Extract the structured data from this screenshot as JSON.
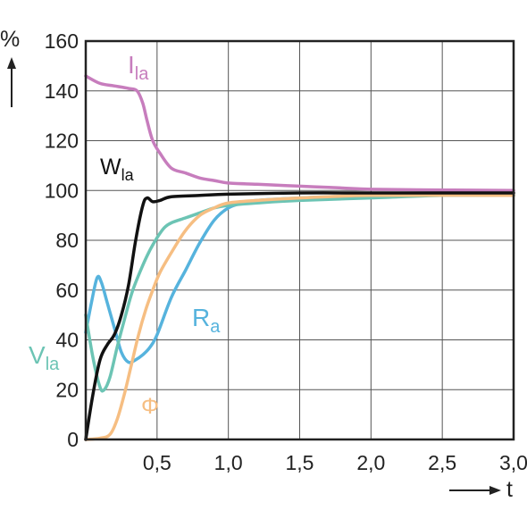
{
  "chart_data": {
    "type": "line",
    "title": "",
    "xlabel": "t",
    "ylabel": "%",
    "xlim": [
      0,
      3.0
    ],
    "ylim": [
      0,
      160
    ],
    "grid": true,
    "x_ticks": [
      0.5,
      1.0,
      1.5,
      2.0,
      2.5,
      3.0
    ],
    "x_tick_labels": [
      "0,5",
      "1,0",
      "1,5",
      "2,0",
      "2,5",
      "3,0"
    ],
    "y_ticks": [
      0,
      20,
      40,
      60,
      80,
      100,
      120,
      140,
      160
    ],
    "y_tick_labels": [
      "0",
      "20",
      "40",
      "60",
      "80",
      "100",
      "120",
      "140",
      "160"
    ],
    "series": [
      {
        "name": "Ila",
        "base": "I",
        "sub": "la",
        "color": "#c77dbd",
        "points": [
          [
            0,
            146
          ],
          [
            0.1,
            143
          ],
          [
            0.2,
            142
          ],
          [
            0.3,
            141
          ],
          [
            0.36,
            140
          ],
          [
            0.4,
            135
          ],
          [
            0.43,
            128
          ],
          [
            0.47,
            120
          ],
          [
            0.52,
            115
          ],
          [
            0.6,
            109
          ],
          [
            0.7,
            107
          ],
          [
            0.8,
            105
          ],
          [
            0.9,
            104
          ],
          [
            1.0,
            103
          ],
          [
            1.2,
            102.5
          ],
          [
            1.4,
            102
          ],
          [
            1.6,
            101.5
          ],
          [
            1.8,
            101
          ],
          [
            2.0,
            100.5
          ],
          [
            2.5,
            100.2
          ],
          [
            3.0,
            100
          ]
        ]
      },
      {
        "name": "Wla",
        "base": "W",
        "sub": "la",
        "color": "#111111",
        "points": [
          [
            0,
            0
          ],
          [
            0.05,
            18
          ],
          [
            0.1,
            32
          ],
          [
            0.15,
            38
          ],
          [
            0.2,
            42
          ],
          [
            0.25,
            50
          ],
          [
            0.3,
            62
          ],
          [
            0.35,
            80
          ],
          [
            0.4,
            94
          ],
          [
            0.43,
            97
          ],
          [
            0.47,
            95.5
          ],
          [
            0.52,
            96
          ],
          [
            0.6,
            97.5
          ],
          [
            0.8,
            98
          ],
          [
            1.0,
            98.5
          ],
          [
            1.5,
            99
          ],
          [
            2.0,
            99
          ],
          [
            2.5,
            99
          ],
          [
            3.0,
            99
          ]
        ]
      },
      {
        "name": "Vla",
        "base": "V",
        "sub": "la",
        "color": "#6cc4b4",
        "points": [
          [
            0,
            50
          ],
          [
            0.05,
            33
          ],
          [
            0.1,
            21
          ],
          [
            0.13,
            20
          ],
          [
            0.17,
            25
          ],
          [
            0.22,
            37
          ],
          [
            0.28,
            50
          ],
          [
            0.33,
            60
          ],
          [
            0.4,
            70
          ],
          [
            0.45,
            76
          ],
          [
            0.5,
            81
          ],
          [
            0.55,
            85
          ],
          [
            0.6,
            87
          ],
          [
            0.7,
            89
          ],
          [
            0.8,
            91
          ],
          [
            0.9,
            93
          ],
          [
            1.0,
            94
          ],
          [
            1.2,
            95
          ],
          [
            1.5,
            96
          ],
          [
            2.0,
            97
          ],
          [
            2.5,
            98
          ],
          [
            3.0,
            98
          ]
        ]
      },
      {
        "name": "Ra",
        "base": "R",
        "sub": "a",
        "color": "#56b3dd",
        "points": [
          [
            0,
            43
          ],
          [
            0.04,
            55
          ],
          [
            0.08,
            65
          ],
          [
            0.11,
            63
          ],
          [
            0.15,
            55
          ],
          [
            0.2,
            45
          ],
          [
            0.25,
            35
          ],
          [
            0.3,
            31
          ],
          [
            0.35,
            32
          ],
          [
            0.4,
            34
          ],
          [
            0.45,
            37
          ],
          [
            0.5,
            42
          ],
          [
            0.6,
            57
          ],
          [
            0.7,
            68
          ],
          [
            0.8,
            79
          ],
          [
            0.9,
            88
          ],
          [
            1.0,
            93
          ],
          [
            1.1,
            95
          ],
          [
            1.2,
            96
          ],
          [
            1.5,
            97
          ],
          [
            2.0,
            98
          ],
          [
            2.5,
            98
          ],
          [
            3.0,
            98
          ]
        ]
      },
      {
        "name": "Φ",
        "base": "Φ",
        "sub": "",
        "color": "#f6be82",
        "points": [
          [
            0,
            0
          ],
          [
            0.1,
            0.5
          ],
          [
            0.17,
            2
          ],
          [
            0.22,
            8
          ],
          [
            0.27,
            18
          ],
          [
            0.32,
            30
          ],
          [
            0.37,
            42
          ],
          [
            0.42,
            52
          ],
          [
            0.47,
            60
          ],
          [
            0.52,
            67
          ],
          [
            0.6,
            75
          ],
          [
            0.7,
            84
          ],
          [
            0.8,
            90
          ],
          [
            0.9,
            93
          ],
          [
            1.0,
            95
          ],
          [
            1.2,
            96
          ],
          [
            1.5,
            97
          ],
          [
            2.0,
            98
          ],
          [
            3.0,
            98
          ]
        ]
      }
    ]
  }
}
